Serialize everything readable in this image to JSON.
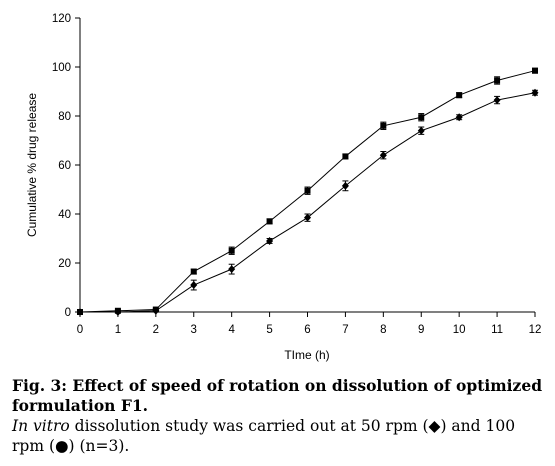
{
  "chart_data": {
    "type": "line",
    "xlabel": "TIme (h)",
    "ylabel": "Cumulative % drug release",
    "x": [
      0,
      1,
      2,
      3,
      4,
      5,
      6,
      7,
      8,
      9,
      10,
      11,
      12
    ],
    "xlim": [
      0,
      12
    ],
    "ylim": [
      0,
      120
    ],
    "xticks": [
      "0",
      "1",
      "2",
      "3",
      "4",
      "5",
      "6",
      "7",
      "8",
      "9",
      "10",
      "11",
      "12"
    ],
    "yticks": [
      "0",
      "20",
      "40",
      "60",
      "80",
      "100",
      "120"
    ],
    "grid": false,
    "series": [
      {
        "marker": "square",
        "values": [
          0,
          0.5,
          1,
          16.5,
          25,
          37,
          49.5,
          63.5,
          76,
          79.5,
          88.5,
          94.5,
          98.5
        ],
        "errors": [
          0,
          0.3,
          0.4,
          1,
          1.5,
          1,
          1.5,
          1,
          1.5,
          1.5,
          1,
          1.5,
          1
        ]
      },
      {
        "marker": "diamond",
        "values": [
          0,
          0,
          0.5,
          11,
          17.5,
          29,
          38.5,
          51.5,
          64,
          74,
          79.5,
          86.5,
          89.5
        ],
        "errors": [
          0,
          0.3,
          0.3,
          2,
          2,
          1,
          1.5,
          2,
          1.5,
          1.5,
          1,
          1.5,
          1
        ]
      }
    ]
  },
  "caption": {
    "line1": "Fig. 3: Effect of speed of rotation on dissolution of optimized formulation F1.",
    "line2_italic": "In vitro",
    "line2_rest": " dissolution study was carried out at 50 rpm (◆) and 100 rpm (●) (n=3)."
  }
}
